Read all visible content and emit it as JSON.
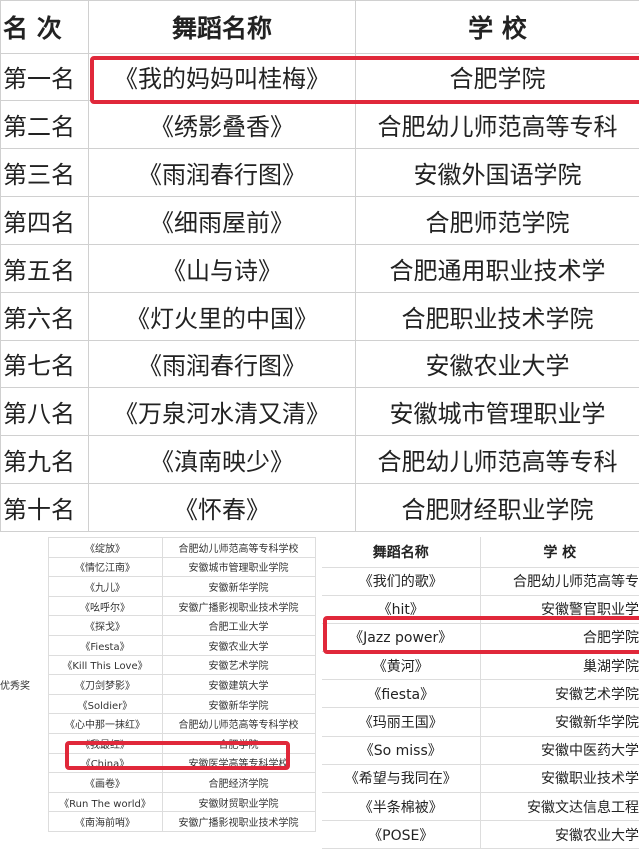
{
  "top_table": {
    "headers": [
      "名 次",
      "舞蹈名称",
      "学 校"
    ],
    "rows": [
      [
        "第一名",
        "《我的妈妈叫桂梅》",
        "合肥学院"
      ],
      [
        "第二名",
        "《绣影叠香》",
        "合肥幼儿师范高等专科"
      ],
      [
        "第三名",
        "《雨润春行图》",
        "安徽外国语学院"
      ],
      [
        "第四名",
        "《细雨屋前》",
        "合肥师范学院"
      ],
      [
        "第五名",
        "《山与诗》",
        "合肥通用职业技术学"
      ],
      [
        "第六名",
        "《灯火里的中国》",
        "合肥职业技术学院"
      ],
      [
        "第七名",
        "《雨润春行图》",
        "安徽农业大学"
      ],
      [
        "第八名",
        "《万泉河水清又清》",
        "安徽城市管理职业学"
      ],
      [
        "第九名",
        "《滇南映少》",
        "合肥幼儿师范高等专科"
      ],
      [
        "第十名",
        "《怀春》",
        "合肥财经职业学院"
      ]
    ]
  },
  "left_table": {
    "award_label": "优秀奖",
    "rows": [
      [
        "《绽放》",
        "合肥幼儿师范高等专科学校"
      ],
      [
        "《情忆江南》",
        "安徽城市管理职业学院"
      ],
      [
        "《九儿》",
        "安徽新华学院"
      ],
      [
        "《吆呼尔》",
        "安徽广播影视职业技术学院"
      ],
      [
        "《探戈》",
        "合肥工业大学"
      ],
      [
        "《Fiesta》",
        "安徽农业大学"
      ],
      [
        "《Kill This Love》",
        "安徽艺术学院"
      ],
      [
        "《刀剑梦影》",
        "安徽建筑大学"
      ],
      [
        "《Soldier》",
        "安徽新华学院"
      ],
      [
        "《心中那一抹红》",
        "合肥幼儿师范高等专科学校"
      ],
      [
        "《我最红》",
        "合肥学院"
      ],
      [
        "《China》",
        "安徽医学高等专科学校"
      ],
      [
        "《画卷》",
        "合肥经济学院"
      ],
      [
        "《Run The world》",
        "安徽财贸职业学院"
      ],
      [
        "《南海前哨》",
        "安徽广播影视职业技术学院"
      ]
    ]
  },
  "right_table": {
    "headers": [
      "舞蹈名称",
      "学 校"
    ],
    "rows": [
      [
        "《我们的歌》",
        "合肥幼儿师范高等专"
      ],
      [
        "《hit》",
        "安徽警官职业学"
      ],
      [
        "《Jazz power》",
        "合肥学院"
      ],
      [
        "《黄河》",
        "巢湖学院"
      ],
      [
        "《fiesta》",
        "安徽艺术学院"
      ],
      [
        "《玛丽王国》",
        "安徽新华学院"
      ],
      [
        "《So miss》",
        "安徽中医药大学"
      ],
      [
        "《希望与我同在》",
        "安徽职业技术学"
      ],
      [
        "《半条棉被》",
        "安徽文达信息工程"
      ],
      [
        "《POSE》",
        "安徽农业大学"
      ]
    ]
  },
  "highlight_color": "#e0283a"
}
